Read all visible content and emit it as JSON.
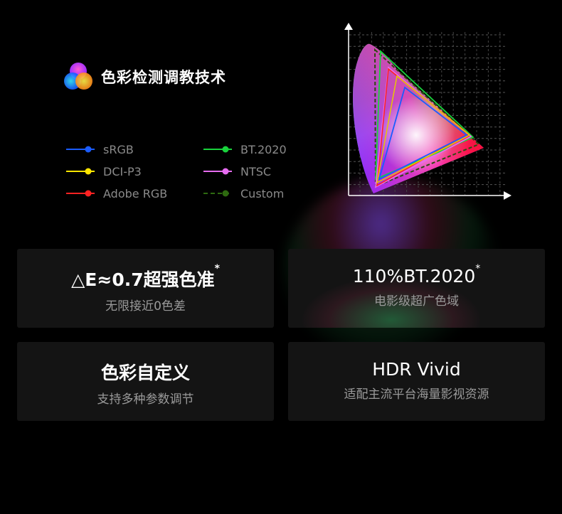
{
  "header": {
    "title": "色彩检测调教技术",
    "icon": "rgb-circles-icon"
  },
  "legend": [
    {
      "label": "sRGB",
      "color": "#1a5cff",
      "dashed": false
    },
    {
      "label": "BT.2020",
      "color": "#19d23c",
      "dashed": false
    },
    {
      "label": "DCI-P3",
      "color": "#ffe600",
      "dashed": false
    },
    {
      "label": "NTSC",
      "color": "#e66cf0",
      "dashed": false
    },
    {
      "label": "Adobe RGB",
      "color": "#ff2222",
      "dashed": false
    },
    {
      "label": "Custom",
      "color": "#2e6a10",
      "dashed": true
    }
  ],
  "cards": [
    {
      "title": "△E≈0.7超强色准",
      "mark": "*",
      "subtitle": "无限接近0色差"
    },
    {
      "title": "110%BT.2020",
      "mark": "*",
      "subtitle": "电影级超广色域"
    },
    {
      "title": "色彩自定义",
      "mark": "",
      "subtitle": "支持多种参数调节"
    },
    {
      "title": "HDR Vivid",
      "mark": "",
      "subtitle": "适配主流平台海量影视资源"
    }
  ]
}
